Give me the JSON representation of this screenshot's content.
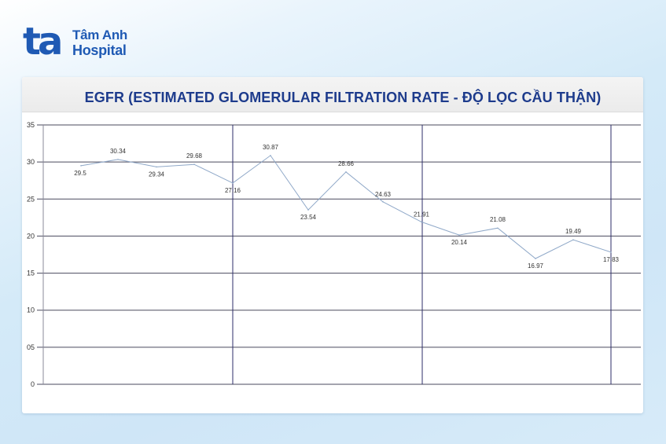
{
  "brand": {
    "mark": "ta",
    "line1": "Tâm Anh",
    "line2": "Hospital",
    "color": "#1f5ab4"
  },
  "chart_data": {
    "type": "line",
    "title": "EGFR (ESTIMATED GLOMERULAR FILTRATION RATE - ĐỘ LỌC CẦU THẬN)",
    "xlabel": "",
    "ylabel": "",
    "ylim": [
      0,
      35
    ],
    "y_ticks": [
      "0",
      "05",
      "10",
      "15",
      "20",
      "25",
      "30",
      "35"
    ],
    "y_tick_values": [
      0,
      5,
      10,
      15,
      20,
      25,
      30,
      35
    ],
    "grid": true,
    "series": [
      {
        "values": [
          29.5,
          30.34,
          29.34,
          29.68,
          27.16,
          30.87,
          23.54,
          28.66,
          24.63,
          21.91,
          20.14,
          21.08,
          16.97,
          19.49,
          17.83
        ],
        "labels": [
          "29.5",
          "30.34",
          "29.34",
          "29.68",
          "27.16",
          "30.87",
          "23.54",
          "28.66",
          "24.63",
          "21.91",
          "20.14",
          "21.08",
          "16.97",
          "19.49",
          "17.83"
        ],
        "color": "#8fa8c8"
      }
    ]
  }
}
